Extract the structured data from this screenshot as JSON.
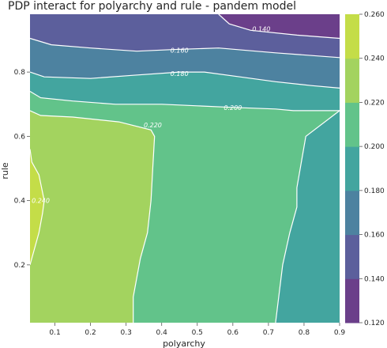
{
  "chart_data": {
    "type": "contour",
    "title": "PDP interact for polyarchy and rule - pandem model",
    "xlabel": "polyarchy",
    "ylabel": "rule",
    "xlim": [
      0.03,
      0.9
    ],
    "ylim": [
      0.02,
      0.98
    ],
    "xticks": [
      "0.1",
      "0.2",
      "0.3",
      "0.4",
      "0.5",
      "0.6",
      "0.7",
      "0.8",
      "0.9"
    ],
    "yticks": [
      "0.2",
      "0.4",
      "0.6",
      "0.8"
    ],
    "levels": [
      0.12,
      0.14,
      0.16,
      0.18,
      0.2,
      0.22,
      0.24,
      0.26
    ],
    "level_colors": [
      "#6b3f8a",
      "#5c5f9c",
      "#4d82a0",
      "#43a59f",
      "#62c38a",
      "#a3d35f",
      "#c4dd48",
      "#f7e447"
    ],
    "colorbar": {
      "ticks": [
        "0.120",
        "0.140",
        "0.160",
        "0.180",
        "0.200",
        "0.220",
        "0.240",
        "0.260"
      ]
    },
    "contour_lines": [
      {
        "level": "0.140",
        "points": [
          [
            0.56,
            0.98
          ],
          [
            0.59,
            0.95
          ],
          [
            0.65,
            0.93
          ],
          [
            0.78,
            0.915
          ],
          [
            0.9,
            0.905
          ]
        ],
        "label_at": [
          0.68,
          0.935
        ]
      },
      {
        "level": "0.160",
        "points": [
          [
            0.03,
            0.905
          ],
          [
            0.09,
            0.885
          ],
          [
            0.2,
            0.875
          ],
          [
            0.33,
            0.865
          ],
          [
            0.43,
            0.87
          ],
          [
            0.56,
            0.875
          ],
          [
            0.72,
            0.86
          ],
          [
            0.9,
            0.845
          ]
        ],
        "label_at": [
          0.45,
          0.868
        ]
      },
      {
        "level": "0.180",
        "points": [
          [
            0.03,
            0.8
          ],
          [
            0.07,
            0.785
          ],
          [
            0.2,
            0.78
          ],
          [
            0.32,
            0.79
          ],
          [
            0.45,
            0.8
          ],
          [
            0.52,
            0.8
          ],
          [
            0.62,
            0.785
          ],
          [
            0.72,
            0.77
          ],
          [
            0.82,
            0.758
          ],
          [
            0.9,
            0.75
          ]
        ],
        "label_at": [
          0.45,
          0.795
        ]
      },
      {
        "level": "0.200",
        "points": [
          [
            0.03,
            0.74
          ],
          [
            0.06,
            0.72
          ],
          [
            0.15,
            0.71
          ],
          [
            0.27,
            0.7
          ],
          [
            0.4,
            0.7
          ],
          [
            0.5,
            0.695
          ],
          [
            0.6,
            0.69
          ],
          [
            0.72,
            0.685
          ],
          [
            0.77,
            0.68
          ],
          [
            0.9,
            0.68
          ]
        ],
        "label_at": [
          0.6,
          0.69
        ]
      },
      {
        "level": "0.200",
        "points": [
          [
            0.9,
            0.68
          ],
          [
            0.805,
            0.6
          ],
          [
            0.78,
            0.44
          ],
          [
            0.78,
            0.38
          ],
          [
            0.76,
            0.3
          ],
          [
            0.74,
            0.2
          ],
          [
            0.72,
            0.02
          ]
        ],
        "label_at": null
      },
      {
        "level": "0.220",
        "points": [
          [
            0.03,
            0.68
          ],
          [
            0.06,
            0.665
          ],
          [
            0.15,
            0.66
          ],
          [
            0.28,
            0.645
          ],
          [
            0.37,
            0.62
          ],
          [
            0.38,
            0.6
          ],
          [
            0.375,
            0.5
          ],
          [
            0.37,
            0.4
          ],
          [
            0.36,
            0.3
          ],
          [
            0.34,
            0.22
          ],
          [
            0.32,
            0.1
          ],
          [
            0.32,
            0.02
          ]
        ],
        "label_at": [
          0.375,
          0.635
        ]
      },
      {
        "level": "0.240",
        "points": [
          [
            0.03,
            0.56
          ],
          [
            0.035,
            0.52
          ],
          [
            0.055,
            0.48
          ],
          [
            0.07,
            0.4
          ],
          [
            0.065,
            0.36
          ],
          [
            0.055,
            0.3
          ],
          [
            0.03,
            0.2
          ]
        ],
        "label_at": [
          0.06,
          0.4
        ]
      }
    ]
  }
}
